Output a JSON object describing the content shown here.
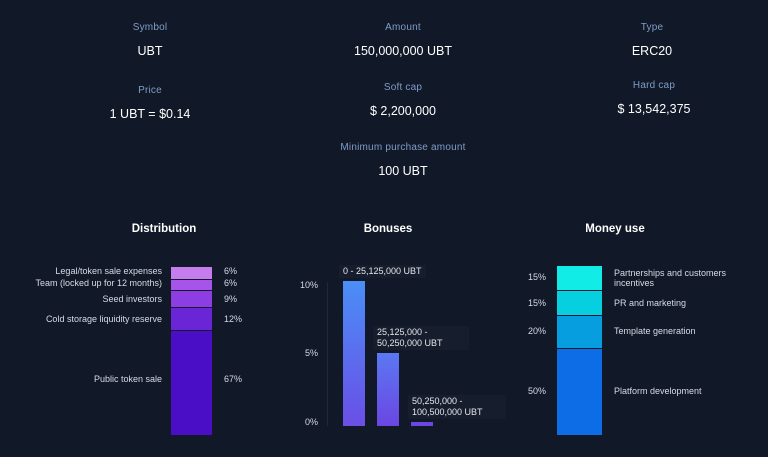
{
  "info": {
    "symbol": {
      "label": "Symbol",
      "value": "UBT"
    },
    "amount": {
      "label": "Amount",
      "value": "150,000,000 UBT"
    },
    "type": {
      "label": "Type",
      "value": "ERC20"
    },
    "price": {
      "label": "Price",
      "value": "1 UBT = $0.14"
    },
    "soft_cap": {
      "label": "Soft cap",
      "value": "$ 2,200,000"
    },
    "hard_cap": {
      "label": "Hard cap",
      "value": "$ 13,542,375"
    },
    "min_purchase": {
      "label": "Minimum purchase amount",
      "value": "100 UBT"
    }
  },
  "distribution": {
    "title": "Distribution",
    "items": [
      {
        "label": "Legal/token sale expenses",
        "pct": "6%",
        "color": "#c57dee"
      },
      {
        "label": "Team (locked up for 12  months)",
        "pct": "6%",
        "color": "#a654ea"
      },
      {
        "label": "Seed investors",
        "pct": "9%",
        "color": "#8c3ee3"
      },
      {
        "label": "Cold storage liquidity reserve",
        "pct": "12%",
        "color": "#6a26d6"
      },
      {
        "label": "Public token sale",
        "pct": "67%",
        "color": "#4b0ec7"
      }
    ]
  },
  "bonuses": {
    "title": "Bonuses",
    "axis": [
      "10%",
      "5%",
      "0%"
    ],
    "items": [
      {
        "label": "0 - 25,125,000 UBT",
        "value": 10
      },
      {
        "label": "25,125,000 - 50,250,000 UBT",
        "value": 5
      },
      {
        "label": "50,250,000 - 100,500,000 UBT",
        "value": 0.3
      }
    ]
  },
  "money_use": {
    "title": "Money use",
    "items": [
      {
        "pct": "15%",
        "label": "Partnerships and customers incentives",
        "color": "#12ece6"
      },
      {
        "pct": "15%",
        "label": "PR and marketing",
        "color": "#06cfdf"
      },
      {
        "pct": "20%",
        "label": "Template generation",
        "color": "#079ee0"
      },
      {
        "pct": "50%",
        "label": "Platform development",
        "color": "#0c6de6"
      }
    ]
  },
  "chart_data": [
    {
      "type": "bar",
      "title": "Distribution",
      "stacked": true,
      "categories": [
        "Legal/token sale expenses",
        "Team (locked up for 12  months)",
        "Seed investors",
        "Cold storage liquidity reserve",
        "Public token sale"
      ],
      "values": [
        6,
        6,
        9,
        12,
        67
      ]
    },
    {
      "type": "bar",
      "title": "Bonuses",
      "categories": [
        "0 - 25,125,000 UBT",
        "25,125,000 - 50,250,000 UBT",
        "50,250,000 - 100,500,000 UBT"
      ],
      "values": [
        10,
        5,
        0.3
      ],
      "ylim": [
        0,
        10
      ]
    },
    {
      "type": "bar",
      "title": "Money use",
      "stacked": true,
      "categories": [
        "Partnerships and customers incentives",
        "PR and marketing",
        "Template generation",
        "Platform development"
      ],
      "values": [
        15,
        15,
        20,
        50
      ]
    }
  ]
}
